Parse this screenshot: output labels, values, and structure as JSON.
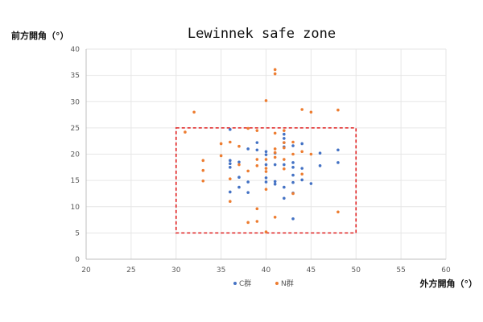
{
  "chart_data": {
    "type": "scatter",
    "title": "Lewinnek safe zone",
    "xlabel": "外方開角（°）",
    "ylabel": "前方開角（°）",
    "xlim": [
      20,
      60
    ],
    "ylim": [
      0,
      40
    ],
    "x_ticks": [
      20,
      25,
      30,
      35,
      40,
      45,
      50,
      55,
      60
    ],
    "y_ticks": [
      0,
      5,
      10,
      15,
      20,
      25,
      30,
      35,
      40
    ],
    "grid": true,
    "legend": "bottom",
    "safe_zone": {
      "x": [
        30,
        50
      ],
      "y": [
        5,
        25
      ],
      "color": "#e02020",
      "style": "dashed"
    },
    "series": [
      {
        "name": "C群",
        "color": "#4472c4",
        "points": [
          [
            36,
            24.7
          ],
          [
            36,
            18.8
          ],
          [
            36,
            18.2
          ],
          [
            36,
            17.5
          ],
          [
            36,
            12.8
          ],
          [
            37,
            15.6
          ],
          [
            37,
            13.7
          ],
          [
            37,
            18.5
          ],
          [
            38,
            21.0
          ],
          [
            38,
            14.7
          ],
          [
            38,
            12.7
          ],
          [
            39,
            22.2
          ],
          [
            39,
            20.8
          ],
          [
            40,
            20.5
          ],
          [
            40,
            19.9
          ],
          [
            40,
            18.0
          ],
          [
            40,
            15.5
          ],
          [
            40,
            14.7
          ],
          [
            41,
            20.2
          ],
          [
            41,
            18.0
          ],
          [
            41,
            14.8
          ],
          [
            41,
            14.3
          ],
          [
            42,
            23.8
          ],
          [
            42,
            23.0
          ],
          [
            42,
            22.2
          ],
          [
            42,
            21.4
          ],
          [
            42,
            18.0
          ],
          [
            42,
            13.7
          ],
          [
            42,
            11.6
          ],
          [
            43,
            21.6
          ],
          [
            43,
            18.4
          ],
          [
            43,
            17.5
          ],
          [
            43,
            16.0
          ],
          [
            43,
            14.6
          ],
          [
            43,
            12.6
          ],
          [
            43,
            7.7
          ],
          [
            44,
            22.0
          ],
          [
            44,
            17.3
          ],
          [
            44,
            15.1
          ],
          [
            45,
            14.4
          ],
          [
            46,
            20.2
          ],
          [
            46,
            17.8
          ],
          [
            48,
            20.8
          ],
          [
            48,
            18.4
          ]
        ]
      },
      {
        "name": "N群",
        "color": "#ed7d31",
        "points": [
          [
            31,
            24.2
          ],
          [
            32,
            28.0
          ],
          [
            33,
            18.8
          ],
          [
            33,
            16.9
          ],
          [
            33,
            14.9
          ],
          [
            35,
            22.0
          ],
          [
            35,
            19.7
          ],
          [
            36,
            22.3
          ],
          [
            36,
            15.3
          ],
          [
            36,
            11.0
          ],
          [
            37,
            21.5
          ],
          [
            37,
            18.0
          ],
          [
            38,
            24.9
          ],
          [
            38,
            16.8
          ],
          [
            38,
            7.0
          ],
          [
            39,
            24.5
          ],
          [
            39,
            19.0
          ],
          [
            39,
            17.8
          ],
          [
            39,
            9.6
          ],
          [
            39,
            7.2
          ],
          [
            40,
            30.2
          ],
          [
            40,
            19.0
          ],
          [
            40,
            17.3
          ],
          [
            40,
            16.7
          ],
          [
            40,
            13.3
          ],
          [
            40,
            5.2
          ],
          [
            41,
            36.1
          ],
          [
            41,
            35.3
          ],
          [
            41,
            24.0
          ],
          [
            41,
            21.0
          ],
          [
            41,
            20.3
          ],
          [
            41,
            19.4
          ],
          [
            41,
            8.0
          ],
          [
            42,
            24.5
          ],
          [
            42,
            22.2
          ],
          [
            42,
            21.2
          ],
          [
            42,
            19.0
          ],
          [
            42,
            17.2
          ],
          [
            43,
            22.3
          ],
          [
            43,
            20.0
          ],
          [
            43,
            12.5
          ],
          [
            44,
            28.5
          ],
          [
            44,
            20.5
          ],
          [
            44,
            16.2
          ],
          [
            45,
            28.0
          ],
          [
            45,
            20.0
          ],
          [
            48,
            28.4
          ],
          [
            48,
            9.0
          ]
        ]
      }
    ]
  }
}
